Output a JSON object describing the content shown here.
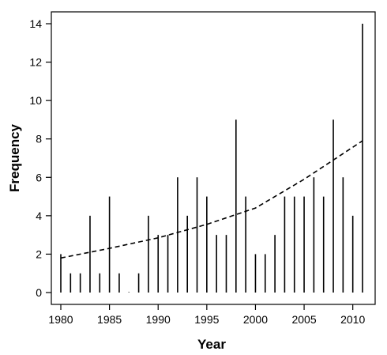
{
  "chart_data": {
    "type": "bar",
    "title": "",
    "xlabel": "Year",
    "ylabel": "Frequency",
    "xlim": [
      1980,
      2011
    ],
    "ylim": [
      0,
      14
    ],
    "x_ticks": [
      1980,
      1985,
      1990,
      1995,
      2000,
      2005,
      2010
    ],
    "y_ticks": [
      0,
      2,
      4,
      6,
      8,
      10,
      12,
      14
    ],
    "grid": false,
    "legend": "none",
    "bar_style": "vertical lines (histogram-like spikes)",
    "x": [
      1980,
      1981,
      1982,
      1983,
      1984,
      1985,
      1986,
      1987,
      1988,
      1989,
      1990,
      1991,
      1992,
      1993,
      1994,
      1995,
      1996,
      1997,
      1998,
      1999,
      2000,
      2001,
      2002,
      2003,
      2004,
      2005,
      2006,
      2007,
      2008,
      2009,
      2010,
      2011
    ],
    "values": [
      2,
      1,
      1,
      4,
      1,
      5,
      1,
      0,
      1,
      4,
      3,
      3,
      6,
      4,
      6,
      5,
      3,
      3,
      9,
      5,
      2,
      2,
      3,
      5,
      5,
      5,
      6,
      5,
      9,
      6,
      4,
      14
    ],
    "trend": {
      "type": "exponential fit",
      "style": "dashed",
      "x": [
        1980,
        1985,
        1990,
        1995,
        2000,
        2005,
        2011
      ],
      "y": [
        1.8,
        2.3,
        2.85,
        3.55,
        4.4,
        5.9,
        7.9
      ]
    },
    "colors": {
      "bars": "#000000",
      "trend": "#000000",
      "axis": "#000000"
    }
  }
}
